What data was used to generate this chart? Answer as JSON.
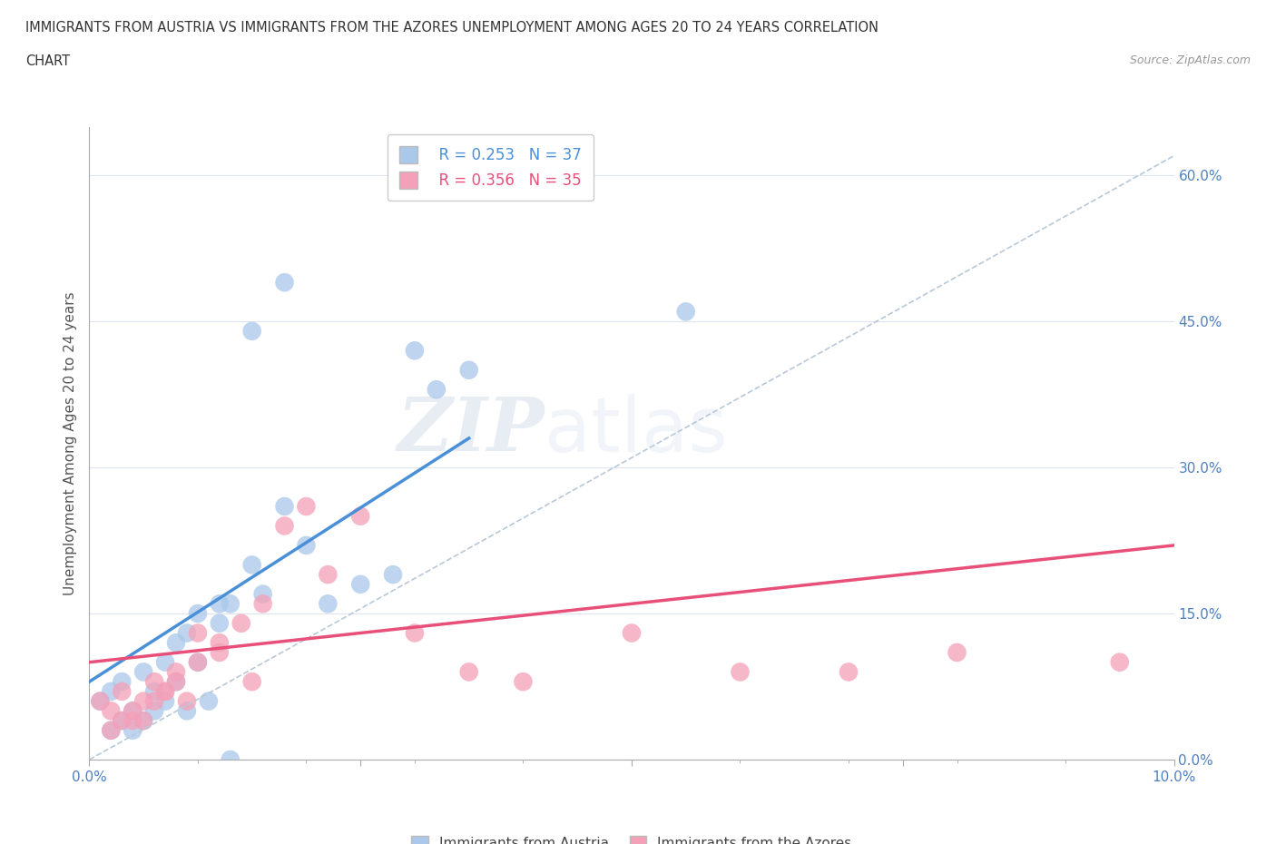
{
  "title_line1": "IMMIGRANTS FROM AUSTRIA VS IMMIGRANTS FROM THE AZORES UNEMPLOYMENT AMONG AGES 20 TO 24 YEARS CORRELATION",
  "title_line2": "CHART",
  "source": "Source: ZipAtlas.com",
  "ylabel": "Unemployment Among Ages 20 to 24 years",
  "xlim": [
    0.0,
    0.1
  ],
  "ylim": [
    0.0,
    0.65
  ],
  "xticks": [
    0.0,
    0.025,
    0.05,
    0.075,
    0.1
  ],
  "yticks": [
    0.0,
    0.15,
    0.3,
    0.45,
    0.6
  ],
  "xtick_labels": [
    "0.0%",
    "",
    "",
    "",
    "10.0%"
  ],
  "ytick_labels": [
    "0.0%",
    "15.0%",
    "30.0%",
    "45.0%",
    "60.0%"
  ],
  "austria_color": "#aac8ea",
  "azores_color": "#f4a0b8",
  "austria_line_color": "#4a90d9",
  "azores_line_color": "#e8507a",
  "dashed_line_color": "#b8c8d8",
  "legend_R_austria": "R = 0.253",
  "legend_N_austria": "N = 37",
  "legend_R_azores": "R = 0.356",
  "legend_N_azores": "N = 35",
  "watermark_zip": "ZIP",
  "watermark_atlas": "atlas",
  "austria_scatter_x": [
    0.001,
    0.002,
    0.003,
    0.004,
    0.005,
    0.006,
    0.007,
    0.008,
    0.009,
    0.01,
    0.011,
    0.012,
    0.013,
    0.015,
    0.016,
    0.018,
    0.02,
    0.022,
    0.025,
    0.028,
    0.03,
    0.032,
    0.035,
    0.002,
    0.003,
    0.004,
    0.005,
    0.006,
    0.007,
    0.008,
    0.009,
    0.01,
    0.012,
    0.015,
    0.018,
    0.055,
    0.013
  ],
  "austria_scatter_y": [
    0.06,
    0.07,
    0.08,
    0.05,
    0.09,
    0.07,
    0.06,
    0.08,
    0.05,
    0.1,
    0.06,
    0.14,
    0.16,
    0.2,
    0.17,
    0.26,
    0.22,
    0.16,
    0.18,
    0.19,
    0.42,
    0.38,
    0.4,
    0.03,
    0.04,
    0.03,
    0.04,
    0.05,
    0.1,
    0.12,
    0.13,
    0.15,
    0.16,
    0.44,
    0.49,
    0.46,
    0.0
  ],
  "azores_scatter_x": [
    0.001,
    0.002,
    0.003,
    0.004,
    0.005,
    0.006,
    0.007,
    0.008,
    0.009,
    0.01,
    0.012,
    0.014,
    0.016,
    0.018,
    0.02,
    0.022,
    0.025,
    0.03,
    0.035,
    0.04,
    0.05,
    0.06,
    0.07,
    0.08,
    0.095,
    0.002,
    0.003,
    0.004,
    0.005,
    0.006,
    0.007,
    0.008,
    0.01,
    0.012,
    0.015
  ],
  "azores_scatter_y": [
    0.06,
    0.05,
    0.07,
    0.04,
    0.06,
    0.08,
    0.07,
    0.09,
    0.06,
    0.1,
    0.11,
    0.14,
    0.16,
    0.24,
    0.26,
    0.19,
    0.25,
    0.13,
    0.09,
    0.08,
    0.13,
    0.09,
    0.09,
    0.11,
    0.1,
    0.03,
    0.04,
    0.05,
    0.04,
    0.06,
    0.07,
    0.08,
    0.13,
    0.12,
    0.08
  ],
  "austria_trend_x": [
    0.0,
    0.035
  ],
  "austria_trend_y": [
    0.08,
    0.33
  ],
  "azores_trend_x": [
    0.0,
    0.1
  ],
  "azores_trend_y": [
    0.1,
    0.22
  ],
  "dashed_trend_x": [
    0.0,
    0.1
  ],
  "dashed_trend_y": [
    0.0,
    0.62
  ],
  "background_color": "#ffffff",
  "grid_color": "#dde4f0"
}
